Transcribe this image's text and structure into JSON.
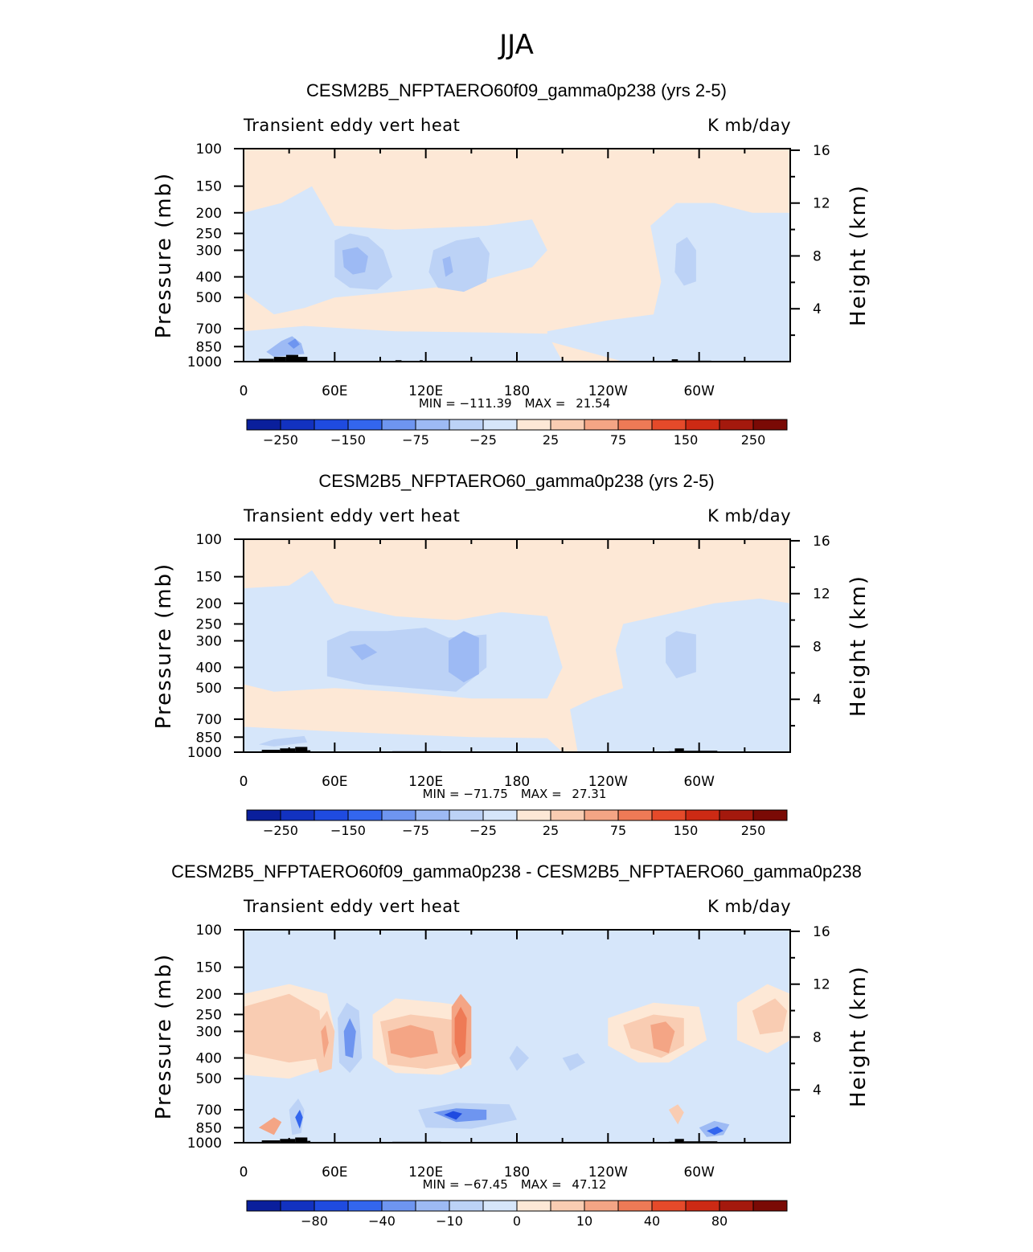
{
  "page_title": "JJA",
  "colors": {
    "blue_levels": [
      "#0a1f9c",
      "#1232c0",
      "#1f4be0",
      "#3366ee",
      "#6e95f0",
      "#9dbaf4",
      "#bcd2f6",
      "#d6e6fa"
    ],
    "red_levels": [
      "#fde8d6",
      "#f9ccb2",
      "#f4a585",
      "#ee7a56",
      "#e54a2a",
      "#cc2a14",
      "#a4190d",
      "#7a0a05"
    ],
    "land": "#000000"
  },
  "chart_data": [
    {
      "type": "contour",
      "title": "CESM2B5_NFPTAERO60f09_gamma0p238 (yrs 2-5)",
      "subtitle_left": "Transient eddy vert heat",
      "subtitle_right": "K mb/day",
      "ylabel": "Pressure (mb)",
      "y2label": "Height (km)",
      "x_ticks": [
        "0",
        "60E",
        "120E",
        "180",
        "120W",
        "60W"
      ],
      "x_range": [
        0,
        360
      ],
      "y_ticks": [
        "100",
        "150",
        "200",
        "250",
        "300",
        "400",
        "500",
        "700",
        "850",
        "1000"
      ],
      "y_range": [
        1000,
        100
      ],
      "y2_ticks": [
        "16",
        "12",
        "8",
        "4"
      ],
      "min_label": "MIN = ",
      "min": "−111.39",
      "max_label": "MAX = ",
      "max": "21.54",
      "colorbar_labels": [
        "−250",
        "−150",
        "−75",
        "−25",
        "25",
        "75",
        "150",
        "250"
      ]
    },
    {
      "type": "contour",
      "title": "CESM2B5_NFPTAERO60_gamma0p238 (yrs 2-5)",
      "subtitle_left": "Transient eddy vert heat",
      "subtitle_right": "K mb/day",
      "ylabel": "Pressure (mb)",
      "y2label": "Height (km)",
      "x_ticks": [
        "0",
        "60E",
        "120E",
        "180",
        "120W",
        "60W"
      ],
      "x_range": [
        0,
        360
      ],
      "y_ticks": [
        "100",
        "150",
        "200",
        "250",
        "300",
        "400",
        "500",
        "700",
        "850",
        "1000"
      ],
      "y_range": [
        1000,
        100
      ],
      "y2_ticks": [
        "16",
        "12",
        "8",
        "4"
      ],
      "min_label": "MIN = ",
      "min": "−71.75",
      "max_label": "MAX = ",
      "max": "27.31",
      "colorbar_labels": [
        "−250",
        "−150",
        "−75",
        "−25",
        "25",
        "75",
        "150",
        "250"
      ]
    },
    {
      "type": "contour",
      "title": "CESM2B5_NFPTAERO60f09_gamma0p238 - CESM2B5_NFPTAERO60_gamma0p238",
      "subtitle_left": "Transient eddy vert heat",
      "subtitle_right": "K mb/day",
      "ylabel": "Pressure (mb)",
      "y2label": "Height (km)",
      "x_ticks": [
        "0",
        "60E",
        "120E",
        "180",
        "120W",
        "60W"
      ],
      "x_range": [
        0,
        360
      ],
      "y_ticks": [
        "100",
        "150",
        "200",
        "250",
        "300",
        "400",
        "500",
        "700",
        "850",
        "1000"
      ],
      "y_range": [
        1000,
        100
      ],
      "y2_ticks": [
        "16",
        "12",
        "8",
        "4"
      ],
      "min_label": "MIN = ",
      "min": "−67.45",
      "max_label": "MAX = ",
      "max": "47.12",
      "colorbar_labels": [
        "−80",
        "−40",
        "−10",
        "0",
        "10",
        "40",
        "80"
      ]
    }
  ]
}
